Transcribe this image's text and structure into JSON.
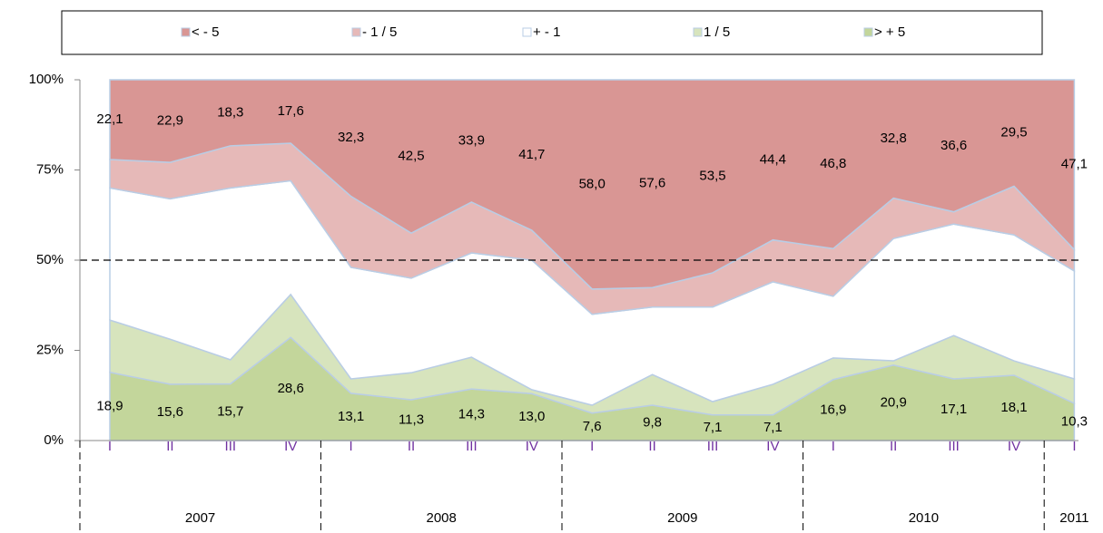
{
  "chart_data": {
    "type": "stacked_area_percent",
    "groups": [
      {
        "name": "2007",
        "categories": [
          "I",
          "II",
          "III",
          "IV"
        ]
      },
      {
        "name": "2008",
        "categories": [
          "I",
          "II",
          "III",
          "IV"
        ]
      },
      {
        "name": "2009",
        "categories": [
          "I",
          "II",
          "III",
          "IV"
        ]
      },
      {
        "name": "2010",
        "categories": [
          "I",
          "II",
          "III",
          "IV"
        ]
      },
      {
        "name": "2011",
        "categories": [
          "I"
        ]
      }
    ],
    "series": [
      {
        "name": "> + 5",
        "color": "#c3d69b",
        "values": [
          18.9,
          15.6,
          15.7,
          28.6,
          13.1,
          11.3,
          14.3,
          13.0,
          7.6,
          9.8,
          7.1,
          7.1,
          16.9,
          20.9,
          17.1,
          18.1,
          10.3
        ],
        "value_labels": [
          "18,9",
          "15,6",
          "15,7",
          "28,6",
          "13,1",
          "11,3",
          "14,3",
          "13,0",
          "7,6",
          "9,8",
          "7,1",
          "7,1",
          "16,9",
          "20,9",
          "17,1",
          "18,1",
          "10,3"
        ]
      },
      {
        "name": "1 / 5",
        "color": "#d7e4bd",
        "values": [
          14.5,
          12.5,
          6.7,
          11.9,
          4.0,
          7.5,
          8.8,
          1.1,
          2.2,
          8.5,
          3.7,
          8.5,
          6.0,
          1.2,
          12.0,
          4.0,
          6.8
        ]
      },
      {
        "name": "+ - 1",
        "color": "#ffffff",
        "values": [
          36.6,
          38.9,
          47.6,
          31.5,
          30.9,
          26.2,
          28.9,
          35.9,
          25.2,
          18.7,
          26.2,
          28.4,
          17.1,
          33.9,
          30.9,
          34.9,
          29.9
        ]
      },
      {
        "name": "- 1 / 5",
        "color": "#e6b9b8",
        "values": [
          7.9,
          10.1,
          11.7,
          10.4,
          19.7,
          12.5,
          14.1,
          8.3,
          7.0,
          5.4,
          9.5,
          11.6,
          13.2,
          11.2,
          3.4,
          13.5,
          5.9
        ]
      },
      {
        "name": "< - 5",
        "color": "#d99694",
        "values": [
          22.1,
          22.9,
          18.3,
          17.6,
          32.3,
          42.5,
          33.9,
          41.7,
          58.0,
          57.6,
          53.5,
          44.4,
          46.8,
          32.8,
          36.6,
          29.5,
          47.1
        ],
        "value_labels": [
          "22,1",
          "22,9",
          "18,3",
          "17,6",
          "32,3",
          "42,5",
          "33,9",
          "41,7",
          "58,0",
          "57,6",
          "53,5",
          "44,4",
          "46,8",
          "32,8",
          "36,6",
          "29,5",
          "47,1"
        ]
      }
    ],
    "legend_order": [
      4,
      3,
      2,
      1,
      0
    ],
    "ylim": [
      0,
      100
    ],
    "yticks": [
      {
        "value": 0,
        "label": "0%"
      },
      {
        "value": 25,
        "label": "25%"
      },
      {
        "value": 50,
        "label": "50%"
      },
      {
        "value": 75,
        "label": "75%"
      },
      {
        "value": 100,
        "label": "100%"
      }
    ],
    "reference_line": 50
  }
}
